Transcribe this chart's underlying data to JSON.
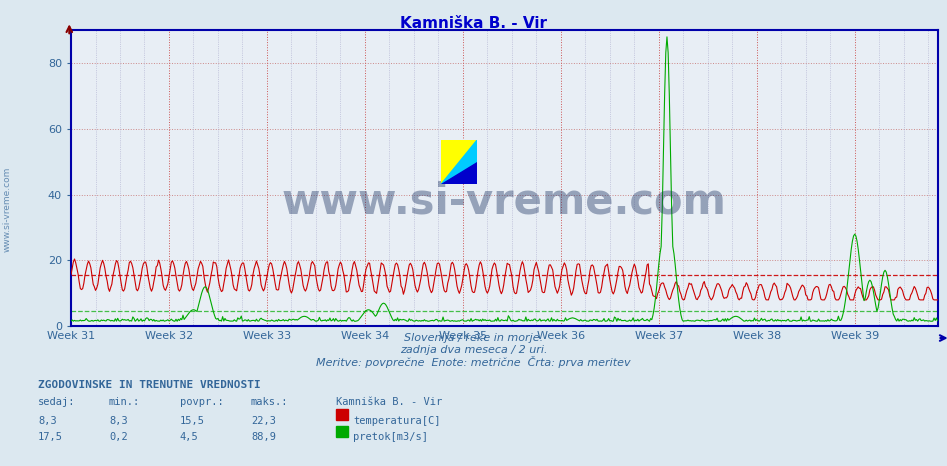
{
  "title": "Kamniška B. - Vir",
  "title_color": "#0000cc",
  "bg_color": "#dce8f0",
  "plot_bg_color": "#e8eef5",
  "xlabel_weeks": [
    "Week 31",
    "Week 32",
    "Week 33",
    "Week 34",
    "Week 35",
    "Week 36",
    "Week 37",
    "Week 38",
    "Week 39"
  ],
  "ylabel_ticks": [
    0,
    20,
    40,
    60,
    80
  ],
  "ymax": 90,
  "ymin": 0,
  "grid_color_h": "#cc8888",
  "grid_color_v": "#aaaacc",
  "temp_color": "#cc0000",
  "flow_color": "#00aa00",
  "temp_avg": 15.5,
  "flow_avg": 4.5,
  "subtitle1": "Slovenija / reke in morje.",
  "subtitle2": "zadnja dva meseca / 2 uri.",
  "subtitle3": "Meritve: povprečne  Enote: metrične  Črta: prva meritev",
  "watermark_text": "www.si-vreme.com",
  "watermark_color": "#1a3060",
  "watermark_alpha": 0.4,
  "bottom_label": "ZGODOVINSKE IN TRENUTNE VREDNOSTI",
  "col_headers": [
    "sedaj:",
    "min.:",
    "povpr.:",
    "maks.:",
    "Kamniška B. - Vir"
  ],
  "row_temp": [
    "8,3",
    "8,3",
    "15,5",
    "22,3",
    "temperatura[C]"
  ],
  "row_flow": [
    "17,5",
    "0,2",
    "4,5",
    "88,9",
    "pretok[m3/s]"
  ],
  "n_points": 744,
  "week_positions": [
    0,
    84,
    168,
    252,
    336,
    420,
    504,
    588,
    672
  ],
  "temp_hline": 15.5,
  "flow_hline": 4.5,
  "axis_color": "#0000aa",
  "tick_color": "#336699",
  "text_color": "#336699",
  "side_text": "www.si-vreme.com"
}
